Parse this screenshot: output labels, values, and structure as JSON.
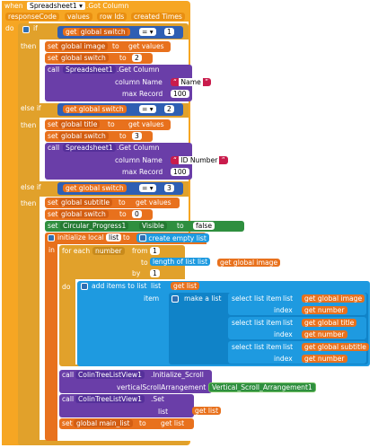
{
  "event": {
    "when": "when",
    "component": "Spreadsheet1",
    "event_name": ".Got Column",
    "params": [
      "responseCode",
      "values",
      "row Ids",
      "created Times"
    ],
    "do": "do"
  },
  "if_block": {
    "if": "if",
    "then": "then",
    "else_if": "else if",
    "get": "get",
    "var": "global switch",
    "op": "=",
    "values": [
      "1",
      "2",
      "3"
    ]
  },
  "branch1": {
    "set1_var": "global image",
    "set1_val": "values",
    "set2_var": "global switch",
    "set2_val": "2",
    "call": "call",
    "component": "Spreadsheet1",
    "method": ".Get Column",
    "arg1_label": "column Name",
    "arg1_val": "Name",
    "arg2_label": "max Record",
    "arg2_val": "100"
  },
  "branch2": {
    "set1_var": "global title",
    "set1_val": "values",
    "set2_var": "global switch",
    "set2_val": "3",
    "call": "call",
    "component": "Spreadsheet1",
    "method": ".Get Column",
    "arg1_label": "column Name",
    "arg1_val": "ID Number",
    "arg2_label": "max Record",
    "arg2_val": "100"
  },
  "branch3": {
    "set1_var": "global subtitle",
    "set1_val": "values",
    "set2_var": "global switch",
    "set2_val": "0",
    "set3_comp": "Circular_Progress1",
    "set3_prop": "Visible",
    "set3_val": "false",
    "init_local": "initialize local",
    "local_name": "list",
    "to": "to",
    "create_empty": "create empty list",
    "in": "in",
    "for_each": "for each",
    "loop_var": "number",
    "from": "from",
    "from_val": "1",
    "to_label": "to",
    "length_of": "length of list",
    "list_label": "list",
    "global_image": "global image",
    "by": "by",
    "by_val": "1",
    "add_items": "add items to list",
    "list_var": "list",
    "item": "item",
    "make_list": "make a list",
    "select_item": "select list item",
    "index": "index",
    "sel_lists": [
      "global image",
      "global title",
      "global subtitle"
    ],
    "sel_index": "number",
    "call2_comp": "ColinTreeListView1",
    "call2_method": ".Initialize_Scroll",
    "call2_arg": "verticalScrollArrangement",
    "call2_val": "Vertical_Scroll_Arrangement1",
    "call3_comp": "ColinTreeListView1",
    "call3_method": ".Set",
    "call3_arg": "list",
    "call3_val": "list",
    "set_last_var": "global main_list",
    "set_last_val": "list"
  },
  "words": {
    "set": "set",
    "get": "get",
    "to": "to",
    "call": "call"
  }
}
